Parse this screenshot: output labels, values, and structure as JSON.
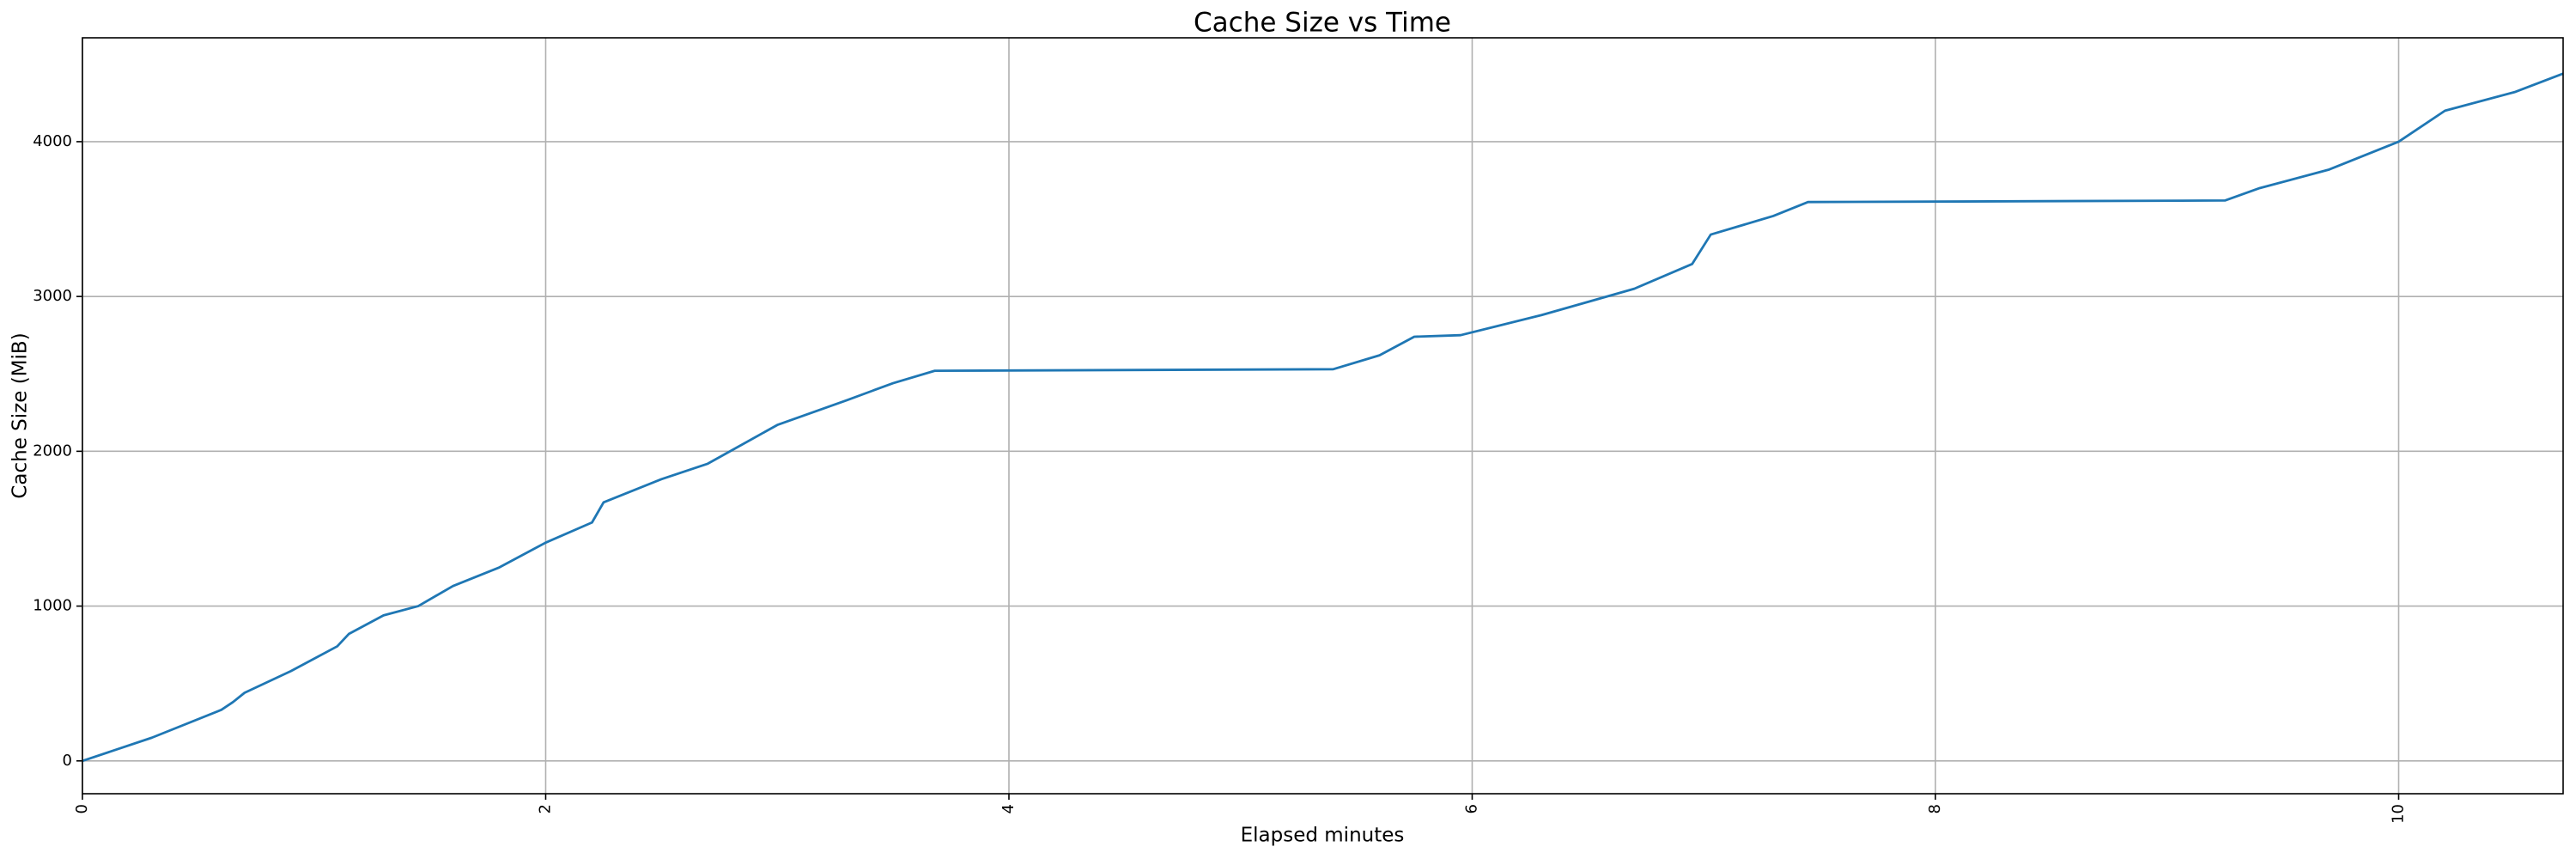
{
  "chart_data": {
    "type": "line",
    "title": "Cache Size vs Time",
    "x_label": "Elapsed minutes",
    "y_label": "Cache Size (MiB)",
    "x": [
      0,
      0.3,
      0.6,
      0.65,
      0.7,
      0.9,
      1.1,
      1.15,
      1.3,
      1.45,
      1.6,
      1.8,
      2.0,
      2.2,
      2.25,
      2.5,
      2.7,
      3.0,
      3.3,
      3.5,
      3.68,
      5.4,
      5.6,
      5.75,
      5.95,
      6.3,
      6.7,
      6.95,
      7.03,
      7.3,
      7.45,
      9.25,
      9.4,
      9.7,
      10.0,
      10.2,
      10.5,
      10.71
    ],
    "values": [
      0,
      150,
      330,
      380,
      440,
      580,
      740,
      820,
      940,
      1000,
      1130,
      1250,
      1410,
      1540,
      1670,
      1820,
      1920,
      2170,
      2330,
      2440,
      2520,
      2530,
      2620,
      2740,
      2750,
      2880,
      3050,
      3210,
      3400,
      3520,
      3610,
      3620,
      3700,
      3820,
      4000,
      4200,
      4320,
      4440
    ],
    "color": "#1f77b4",
    "xlim": [
      0,
      10.71
    ],
    "ylim": [
      -212,
      4671
    ],
    "xticks": [
      0,
      2,
      4,
      6,
      8,
      10
    ],
    "yticks": [
      0,
      1000,
      2000,
      3000,
      4000
    ],
    "grid": true
  }
}
